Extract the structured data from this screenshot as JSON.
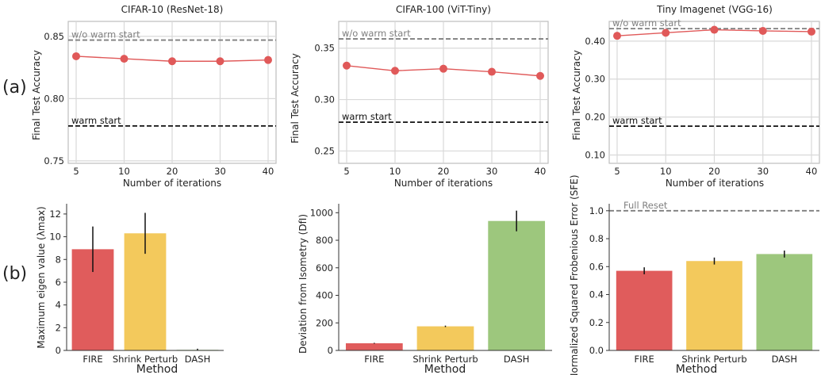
{
  "row_labels": [
    "(a)",
    "(b)"
  ],
  "colors": {
    "line": "#e05959",
    "grid": "#d9d9d9",
    "frame": "#bdbdbd",
    "warm_dash": "#111111",
    "wo_dash": "#7f7f7f",
    "bars": [
      "#e05c5c",
      "#f3c95c",
      "#9dc77d"
    ]
  },
  "chart_data": [
    {
      "type": "line",
      "title": "CIFAR-10 (ResNet-18)",
      "xlabel": "Number of iterations",
      "ylabel": "Final Test Accuracy",
      "x_ticks": [
        "5",
        "10",
        "20",
        "30",
        "40"
      ],
      "y_ticks": [
        "0.75",
        "0.80",
        "0.85"
      ],
      "y_tick_values": [
        0.75,
        0.8,
        0.85
      ],
      "ylim": [
        0.748,
        0.862
      ],
      "series": [
        {
          "values": [
            0.834,
            0.832,
            0.83,
            0.83,
            0.831
          ]
        }
      ],
      "reference_lines": [
        {
          "label": "w/o warm start",
          "value": 0.847,
          "style": "wo"
        },
        {
          "label": "warm start",
          "value": 0.778,
          "style": "warm"
        }
      ],
      "grid": true
    },
    {
      "type": "line",
      "title": "CIFAR-100 (ViT-Tiny)",
      "xlabel": "Number of iterations",
      "ylabel": "Final Test Accuracy",
      "x_ticks": [
        "5",
        "10",
        "20",
        "30",
        "40"
      ],
      "y_ticks": [
        "0.25",
        "0.30",
        "0.35"
      ],
      "y_tick_values": [
        0.25,
        0.3,
        0.35
      ],
      "ylim": [
        0.238,
        0.376
      ],
      "series": [
        {
          "values": [
            0.333,
            0.328,
            0.33,
            0.327,
            0.323
          ]
        }
      ],
      "reference_lines": [
        {
          "label": "w/o warm start",
          "value": 0.359,
          "style": "wo"
        },
        {
          "label": "warm start",
          "value": 0.278,
          "style": "warm"
        }
      ],
      "grid": true
    },
    {
      "type": "line",
      "title": "Tiny Imagenet (VGG-16)",
      "xlabel": "Number of iterations",
      "ylabel": "Final Test Accuracy",
      "x_ticks": [
        "5",
        "10",
        "20",
        "30",
        "40"
      ],
      "y_ticks": [
        "0.10",
        "0.20",
        "0.30",
        "0.40"
      ],
      "y_tick_values": [
        0.1,
        0.2,
        0.3,
        0.4
      ],
      "ylim": [
        0.078,
        0.452
      ],
      "series": [
        {
          "values": [
            0.414,
            0.422,
            0.43,
            0.427,
            0.425
          ]
        }
      ],
      "reference_lines": [
        {
          "label": "w/o warm start",
          "value": 0.433,
          "style": "wo"
        },
        {
          "label": "warm start",
          "value": 0.176,
          "style": "warm"
        }
      ],
      "grid": true
    },
    {
      "type": "bar",
      "xlabel": "Method",
      "ylabel": "Maximum eigen value (λmax)",
      "categories": [
        "FIRE",
        "Shrink Perturb",
        "DASH"
      ],
      "values": [
        8.9,
        10.3,
        0.05
      ],
      "errors": [
        2.0,
        1.8,
        0.1
      ],
      "y_ticks": [
        "0",
        "2",
        "4",
        "6",
        "8",
        "10",
        "12"
      ],
      "y_tick_values": [
        0,
        2,
        4,
        6,
        8,
        10,
        12
      ],
      "ylim": [
        0,
        12.9
      ],
      "grid": false
    },
    {
      "type": "bar",
      "xlabel": "Method",
      "ylabel": "Deviation from Isometry (DfI)",
      "categories": [
        "FIRE",
        "Shrink Perturb",
        "DASH"
      ],
      "values": [
        52,
        175,
        940
      ],
      "errors": [
        3,
        5,
        75
      ],
      "y_ticks": [
        "0",
        "200",
        "400",
        "600",
        "800",
        "1000"
      ],
      "y_tick_values": [
        0,
        200,
        400,
        600,
        800,
        1000
      ],
      "ylim": [
        0,
        1065
      ],
      "grid": false
    },
    {
      "type": "bar",
      "xlabel": "Method",
      "ylabel": "Normalized Squared Frobenious Error (SFE)",
      "categories": [
        "FIRE",
        "Shrink Perturb",
        "DASH"
      ],
      "values": [
        0.57,
        0.64,
        0.69
      ],
      "errors": [
        0.025,
        0.025,
        0.025
      ],
      "y_ticks": [
        "0.0",
        "0.2",
        "0.4",
        "0.6",
        "0.8",
        "1.0"
      ],
      "y_tick_values": [
        0,
        0.2,
        0.4,
        0.6,
        0.8,
        1.0
      ],
      "ylim": [
        0,
        1.05
      ],
      "reference_lines": [
        {
          "label": "Full Reset",
          "value": 1.0,
          "style": "wo"
        }
      ],
      "grid": false
    }
  ]
}
